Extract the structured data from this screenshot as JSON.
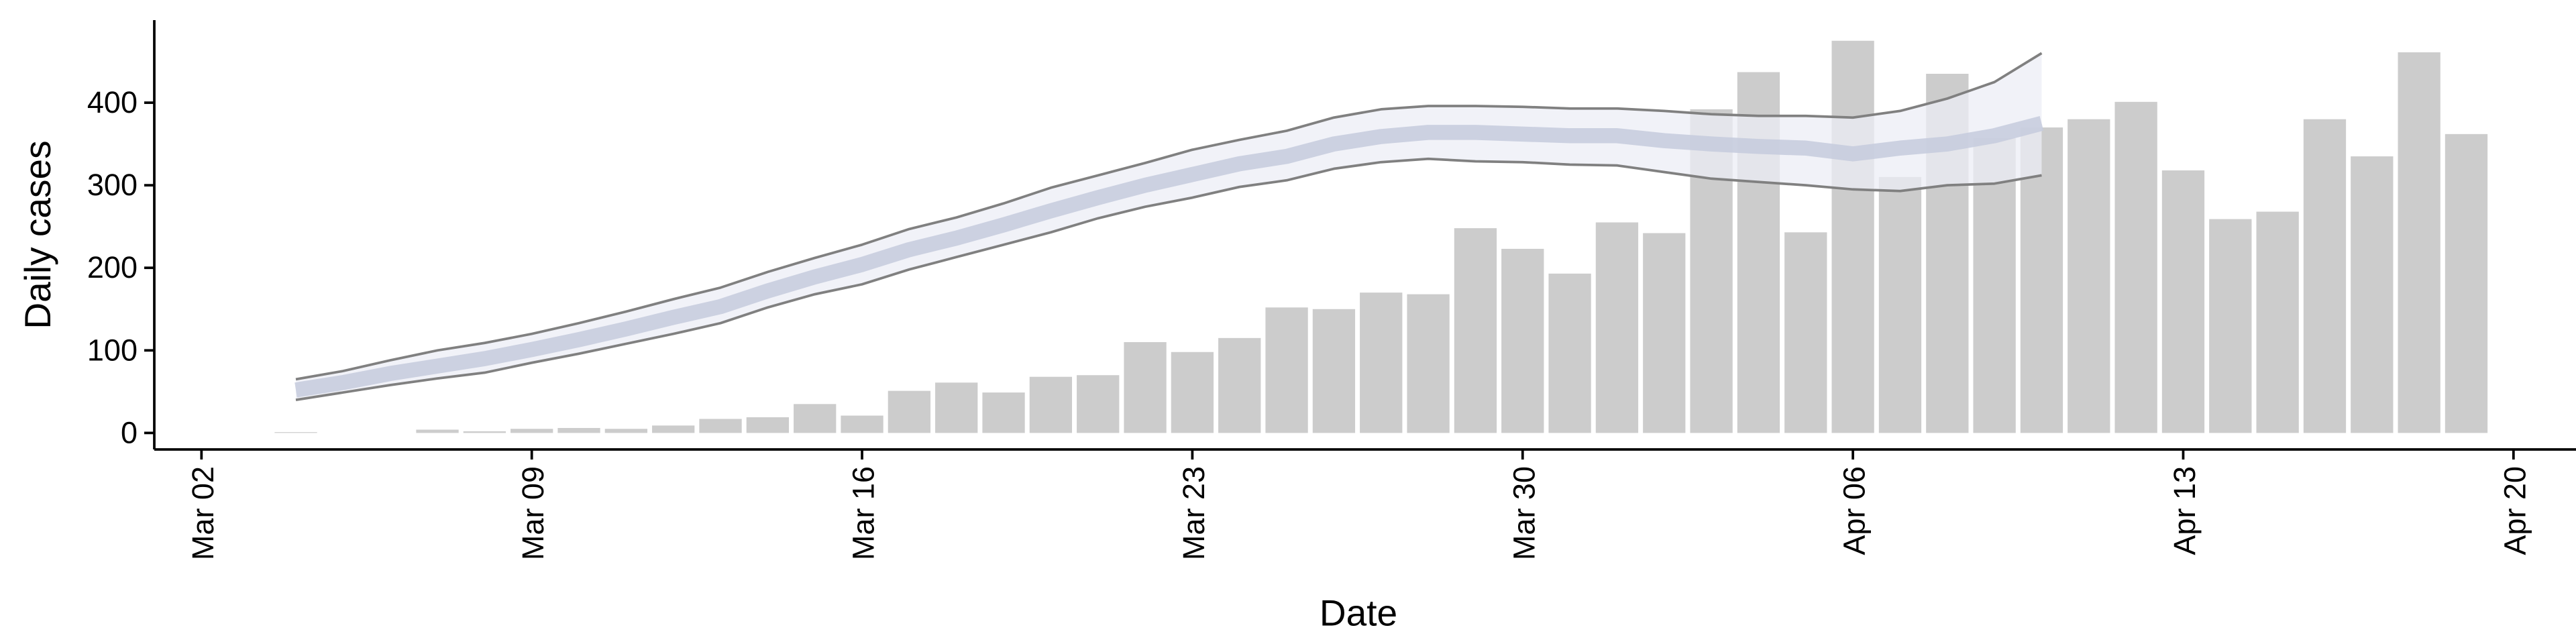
{
  "chart_data": {
    "type": "bar",
    "x_label": "Date",
    "y_label": "Daily cases",
    "x": [
      "Mar 04",
      "Mar 05",
      "Mar 06",
      "Mar 07",
      "Mar 08",
      "Mar 09",
      "Mar 10",
      "Mar 11",
      "Mar 12",
      "Mar 13",
      "Mar 14",
      "Mar 15",
      "Mar 16",
      "Mar 17",
      "Mar 18",
      "Mar 19",
      "Mar 20",
      "Mar 21",
      "Mar 22",
      "Mar 23",
      "Mar 24",
      "Mar 25",
      "Mar 26",
      "Mar 27",
      "Mar 28",
      "Mar 29",
      "Mar 30",
      "Mar 31",
      "Apr 01",
      "Apr 02",
      "Apr 03",
      "Apr 04",
      "Apr 05",
      "Apr 06",
      "Apr 07",
      "Apr 08",
      "Apr 09",
      "Apr 10",
      "Apr 11",
      "Apr 12",
      "Apr 13",
      "Apr 14",
      "Apr 15",
      "Apr 16",
      "Apr 17",
      "Apr 18",
      "Apr 19"
    ],
    "values": [
      1,
      0,
      0,
      4,
      2,
      5,
      6,
      5,
      9,
      17,
      19,
      35,
      21,
      51,
      61,
      49,
      68,
      70,
      110,
      98,
      115,
      152,
      150,
      170,
      168,
      248,
      223,
      193,
      255,
      242,
      392,
      437,
      243,
      475,
      310,
      435,
      357,
      370,
      380,
      401,
      318,
      259,
      268,
      380,
      335,
      461,
      362
    ],
    "color": "#cccccc",
    "band_color": "#eceef5",
    "series": [
      {
        "color": "#808080",
        "values": [
          40,
          49,
          58,
          66,
          73,
          85,
          96,
          108,
          120,
          133,
          152,
          168,
          180,
          198,
          213,
          228,
          243,
          260,
          274,
          285,
          298,
          306,
          320,
          328,
          332,
          329,
          328,
          325,
          324,
          316,
          308,
          304,
          300,
          295,
          293,
          300,
          302,
          312,
          null,
          null,
          null,
          null,
          null,
          null,
          null,
          null,
          null
        ]
      },
      {
        "color": "#808080",
        "values": [
          65,
          75,
          88,
          100,
          109,
          120,
          133,
          147,
          162,
          176,
          195,
          212,
          228,
          247,
          261,
          278,
          297,
          312,
          327,
          343,
          355,
          366,
          382,
          392,
          396,
          396,
          395,
          393,
          393,
          390,
          386,
          384,
          384,
          382,
          390,
          405,
          425,
          460,
          null,
          null,
          null,
          null,
          null,
          null,
          null,
          null,
          null
        ]
      },
      {
        "color": "#c5cbdd",
        "values": [
          52,
          61,
          72,
          81,
          90,
          101,
          113,
          126,
          140,
          153,
          172,
          189,
          204,
          222,
          236,
          252,
          269,
          285,
          300,
          313,
          326,
          335,
          350,
          359,
          364,
          364,
          362,
          360,
          360,
          354,
          350,
          347,
          345,
          338,
          345,
          350,
          360,
          375,
          null,
          null,
          null,
          null,
          null,
          null,
          null,
          null,
          null
        ]
      }
    ],
    "xlim": [
      "Mar 01",
      "Apr 22"
    ],
    "xticks": [
      "Mar 02",
      "Mar 09",
      "Mar 16",
      "Mar 23",
      "Mar 30",
      "Apr 06",
      "Apr 13",
      "Apr 20"
    ],
    "ylim": [
      -20,
      500
    ],
    "yticks": [
      0,
      100,
      200,
      300,
      400
    ],
    "grid": false
  }
}
